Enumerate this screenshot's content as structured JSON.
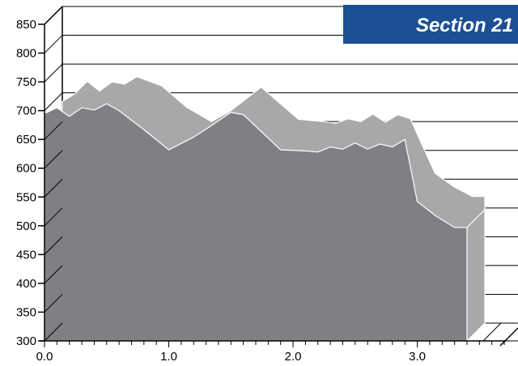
{
  "header": {
    "section_label": "Section 21"
  },
  "colors": {
    "front_area": "#808084",
    "back_area": "#a8a8aa",
    "banner": "#1c4f94"
  },
  "chart_data": {
    "type": "area",
    "title": "",
    "xlabel": "",
    "ylabel": "",
    "xlim": [
      0,
      3.4
    ],
    "ylim": [
      300,
      850
    ],
    "x_ticks": [
      0.0,
      1.0,
      2.0,
      3.0
    ],
    "x_tick_labels": [
      "0.0",
      "1.0",
      "2.0",
      "3.0"
    ],
    "y_ticks": [
      300,
      350,
      400,
      450,
      500,
      550,
      600,
      650,
      700,
      750,
      800,
      850
    ],
    "y_tick_labels": [
      "300",
      "350",
      "400",
      "450",
      "500",
      "550",
      "600",
      "650",
      "700",
      "750",
      "800",
      "850"
    ],
    "grid": true,
    "series": [
      {
        "values_x": [
          0.0,
          0.1,
          0.2,
          0.3,
          0.4,
          0.5,
          0.6,
          0.8,
          1.0,
          1.2,
          1.35,
          1.5,
          1.6,
          1.9,
          2.1,
          2.2,
          2.3,
          2.4,
          2.5,
          2.6,
          2.7,
          2.8,
          3.0,
          3.15,
          3.3,
          3.4
        ],
        "values_y": [
          685,
          698,
          720,
          703,
          719,
          715,
          728,
          712,
          675,
          650,
          668,
          693,
          710,
          654,
          650,
          647,
          655,
          650,
          663,
          649,
          662,
          655,
          560,
          537,
          520,
          520
        ]
      },
      {
        "values_x": [
          0.0,
          0.1,
          0.2,
          0.3,
          0.4,
          0.5,
          0.6,
          0.8,
          1.0,
          1.2,
          1.35,
          1.5,
          1.6,
          1.9,
          2.1,
          2.2,
          2.3,
          2.4,
          2.5,
          2.6,
          2.7,
          2.8,
          2.9,
          3.0,
          3.15,
          3.3,
          3.4
        ],
        "values_y": [
          695,
          705,
          690,
          705,
          701,
          712,
          700,
          667,
          632,
          654,
          675,
          697,
          693,
          632,
          630,
          628,
          637,
          633,
          644,
          633,
          642,
          637,
          650,
          542,
          517,
          497,
          497
        ]
      }
    ]
  }
}
